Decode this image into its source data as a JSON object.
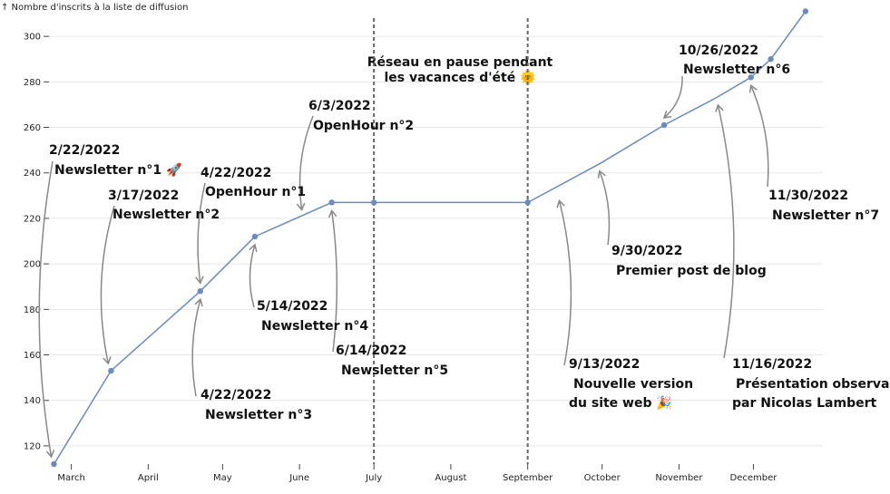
{
  "chart_data": {
    "type": "line",
    "ylabel": "↑ Nombre d'inscrits à la liste de diffusion",
    "ylim": [
      112,
      312
    ],
    "y_ticks": [
      120,
      140,
      160,
      180,
      200,
      220,
      240,
      260,
      280,
      300
    ],
    "x_range": [
      "2022-02-20",
      "2022-12-29"
    ],
    "x_ticks": [
      {
        "date": "2022-03-01",
        "label": "March"
      },
      {
        "date": "2022-04-01",
        "label": "April"
      },
      {
        "date": "2022-05-01",
        "label": "May"
      },
      {
        "date": "2022-06-01",
        "label": "June"
      },
      {
        "date": "2022-07-01",
        "label": "July"
      },
      {
        "date": "2022-08-01",
        "label": "August"
      },
      {
        "date": "2022-09-01",
        "label": "September"
      },
      {
        "date": "2022-10-01",
        "label": "October"
      },
      {
        "date": "2022-11-01",
        "label": "November"
      },
      {
        "date": "2022-12-01",
        "label": "December"
      }
    ],
    "grid": true,
    "line_color": "#6a8ac0",
    "points": [
      {
        "date": "2022-02-22",
        "value": 112
      },
      {
        "date": "2022-03-17",
        "value": 153
      },
      {
        "date": "2022-04-22",
        "value": 188
      },
      {
        "date": "2022-05-14",
        "value": 212
      },
      {
        "date": "2022-06-14",
        "value": 227
      },
      {
        "date": "2022-07-01",
        "value": 227
      },
      {
        "date": "2022-09-01",
        "value": 227
      },
      {
        "date": "2022-09-30",
        "value": 244
      },
      {
        "date": "2022-10-26",
        "value": 261
      },
      {
        "date": "2022-11-16",
        "value": 273
      },
      {
        "date": "2022-11-30",
        "value": 282
      },
      {
        "date": "2022-12-08",
        "value": 290
      },
      {
        "date": "2022-12-22",
        "value": 311
      }
    ],
    "dots": [
      "2022-02-22",
      "2022-03-17",
      "2022-04-22",
      "2022-05-14",
      "2022-06-14",
      "2022-07-01",
      "2022-09-01",
      "2022-10-26",
      "2022-11-30",
      "2022-12-08",
      "2022-12-22"
    ],
    "pause_lines": [
      "2022-07-01",
      "2022-09-01"
    ],
    "pause_label": [
      "Réseau en pause pendant",
      "les vacances d'été 🌞"
    ],
    "annotations": [
      {
        "id": "n1",
        "date": "2022-02-22",
        "value": 112,
        "label_date": "2/22/2022",
        "text": "Newsletter n°1 🚀"
      },
      {
        "id": "n2",
        "date": "2022-03-17",
        "value": 153,
        "label_date": "3/17/2022",
        "text": "Newsletter n°2"
      },
      {
        "id": "oh1",
        "date": "2022-04-22",
        "value": 188,
        "label_date": "4/22/2022",
        "text": "OpenHour n°1"
      },
      {
        "id": "n3",
        "date": "2022-04-22",
        "value": 188,
        "label_date": "4/22/2022",
        "text": "Newsletter n°3"
      },
      {
        "id": "n4",
        "date": "2022-05-14",
        "value": 212,
        "label_date": "5/14/2022",
        "text": "Newsletter n°4"
      },
      {
        "id": "oh2",
        "date": "2022-06-03",
        "value": 221,
        "label_date": "6/3/2022",
        "text": "OpenHour n°2"
      },
      {
        "id": "n5",
        "date": "2022-06-14",
        "value": 227,
        "label_date": "6/14/2022",
        "text": "Newsletter n°5"
      },
      {
        "id": "web",
        "date": "2022-09-13",
        "value": 231,
        "label_date": "9/13/2022",
        "text": "Nouvelle version",
        "text2": "du site web 🎉"
      },
      {
        "id": "blog",
        "date": "2022-09-30",
        "value": 244,
        "label_date": "9/30/2022",
        "text": "Premier post de blog"
      },
      {
        "id": "n6",
        "date": "2022-10-26",
        "value": 261,
        "label_date": "10/26/2022",
        "text": "Newsletter n°6"
      },
      {
        "id": "obs",
        "date": "2022-11-16",
        "value": 273,
        "label_date": "11/16/2022",
        "text": "Présentation observable",
        "text2": "par Nicolas Lambert"
      },
      {
        "id": "n7",
        "date": "2022-11-30",
        "value": 282,
        "label_date": "11/30/2022",
        "text": "Newsletter n°7"
      }
    ]
  }
}
